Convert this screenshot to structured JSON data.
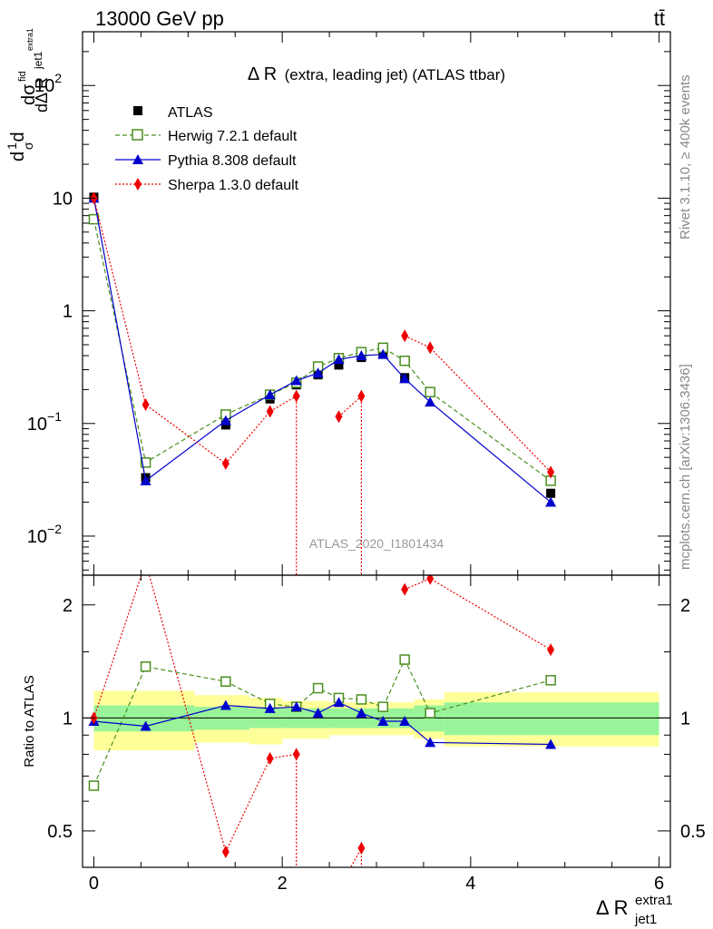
{
  "header": {
    "energy": "13000 GeV pp",
    "process": "tt̄"
  },
  "side_text": {
    "rivet": "Rivet 3.1.10, ≥ 400k events",
    "site": "mcplots.cern.ch [arXiv:1306.3436]"
  },
  "chart_data": {
    "type": "line",
    "title": "Δ R (extra, leading jet) (ATLAS ttbar)",
    "title_main": "Δ R",
    "title_rest": "(extra, leading jet) (ATLAS ttbar)",
    "analysis_label": "ATLAS_2020_I1801434",
    "xlabel_main": "Δ R",
    "xlabel_sup": "extra1",
    "xlabel_sub": "jet1",
    "ylabel_upper": "dσ / dΔ R (1/σ)",
    "ylabel_ratio": "Ratio to ATLAS",
    "xlim": [
      -0.12,
      6.12
    ],
    "ylim_upper": [
      0.0045,
      300
    ],
    "y_scale_upper": "log",
    "ylim_ratio": [
      0.4,
      2.4
    ],
    "y_scale_ratio": "log",
    "x_ticks": [
      "0",
      "2",
      "4",
      "6"
    ],
    "y_ticks_upper": [
      {
        "base": "10",
        "exp": "−2",
        "value": 0.01
      },
      {
        "base": "10",
        "exp": "−1",
        "value": 0.1
      },
      {
        "base": "1",
        "exp": "",
        "value": 1
      },
      {
        "base": "10",
        "exp": "",
        "value": 10
      },
      {
        "base": "10",
        "exp": "2",
        "value": 100
      }
    ],
    "y_ticks_ratio": [
      {
        "label": "0.5",
        "value": 0.5
      },
      {
        "label": "1",
        "value": 1
      },
      {
        "label": "2",
        "value": 2
      }
    ],
    "legend_position": "top-left",
    "x": [
      0.0,
      0.55,
      1.4,
      1.87,
      2.15,
      2.38,
      2.6,
      2.84,
      3.07,
      3.3,
      3.57,
      4.85
    ],
    "series": [
      {
        "name": "ATLAS",
        "color": "#000000",
        "marker": "square",
        "values": [
          10.2,
          0.033,
          0.097,
          0.165,
          0.22,
          0.27,
          0.33,
          0.385,
          0.42,
          0.255,
          0.19,
          0.024
        ]
      },
      {
        "name": "Herwig 7.2.1 default",
        "color": "#4a8f1e",
        "marker": "open-square",
        "dash": "dashed",
        "values": [
          6.5,
          0.045,
          0.12,
          0.18,
          0.23,
          0.32,
          0.38,
          0.43,
          0.47,
          0.36,
          0.19,
          0.031
        ]
      },
      {
        "name": "Pythia 8.308 default",
        "color": "#0000cc",
        "marker": "triangle",
        "dash": "solid",
        "values": [
          10.0,
          0.031,
          0.106,
          0.18,
          0.24,
          0.28,
          0.37,
          0.4,
          0.41,
          0.25,
          0.155,
          0.02
        ]
      },
      {
        "name": "Sherpa 1.3.0 default",
        "color": "#ee0000",
        "marker": "diamond",
        "dash": "dotted",
        "values": [
          10.0,
          0.147,
          0.044,
          0.128,
          0.175,
          null,
          0.115,
          0.175,
          null,
          0.6,
          0.47,
          0.037
        ]
      }
    ],
    "ratio": {
      "Herwig 7.2.1 default": [
        0.66,
        1.37,
        1.25,
        1.09,
        1.07,
        1.2,
        1.13,
        1.12,
        1.07,
        1.43,
        1.03,
        1.26
      ],
      "Pythia 8.308 default": [
        0.98,
        0.95,
        1.08,
        1.06,
        1.07,
        1.03,
        1.1,
        1.03,
        0.98,
        0.98,
        0.86,
        0.85
      ],
      "Sherpa 1.3.0 default": [
        1.0,
        2.6,
        0.44,
        0.78,
        0.8,
        null,
        0.35,
        0.45,
        null,
        2.2,
        2.35,
        1.52
      ]
    },
    "band": {
      "inner": [
        {
          "x0": 0.0,
          "x1": 1.07,
          "lo": 0.92,
          "hi": 1.08
        },
        {
          "x0": 1.07,
          "x1": 1.65,
          "lo": 0.93,
          "hi": 1.07
        },
        {
          "x0": 1.65,
          "x1": 3.4,
          "lo": 0.94,
          "hi": 1.06
        },
        {
          "x0": 3.4,
          "x1": 3.72,
          "lo": 0.92,
          "hi": 1.08
        },
        {
          "x0": 3.72,
          "x1": 6.0,
          "lo": 0.9,
          "hi": 1.1
        }
      ],
      "outer": [
        {
          "x0": 0.0,
          "x1": 1.07,
          "lo": 0.82,
          "hi": 1.18
        },
        {
          "x0": 1.07,
          "x1": 1.65,
          "lo": 0.86,
          "hi": 1.15
        },
        {
          "x0": 1.65,
          "x1": 2.0,
          "lo": 0.85,
          "hi": 1.13
        },
        {
          "x0": 2.0,
          "x1": 2.5,
          "lo": 0.88,
          "hi": 1.11
        },
        {
          "x0": 2.5,
          "x1": 3.4,
          "lo": 0.9,
          "hi": 1.1
        },
        {
          "x0": 3.4,
          "x1": 3.72,
          "lo": 0.88,
          "hi": 1.12
        },
        {
          "x0": 3.72,
          "x1": 6.0,
          "lo": 0.84,
          "hi": 1.17
        }
      ]
    }
  }
}
